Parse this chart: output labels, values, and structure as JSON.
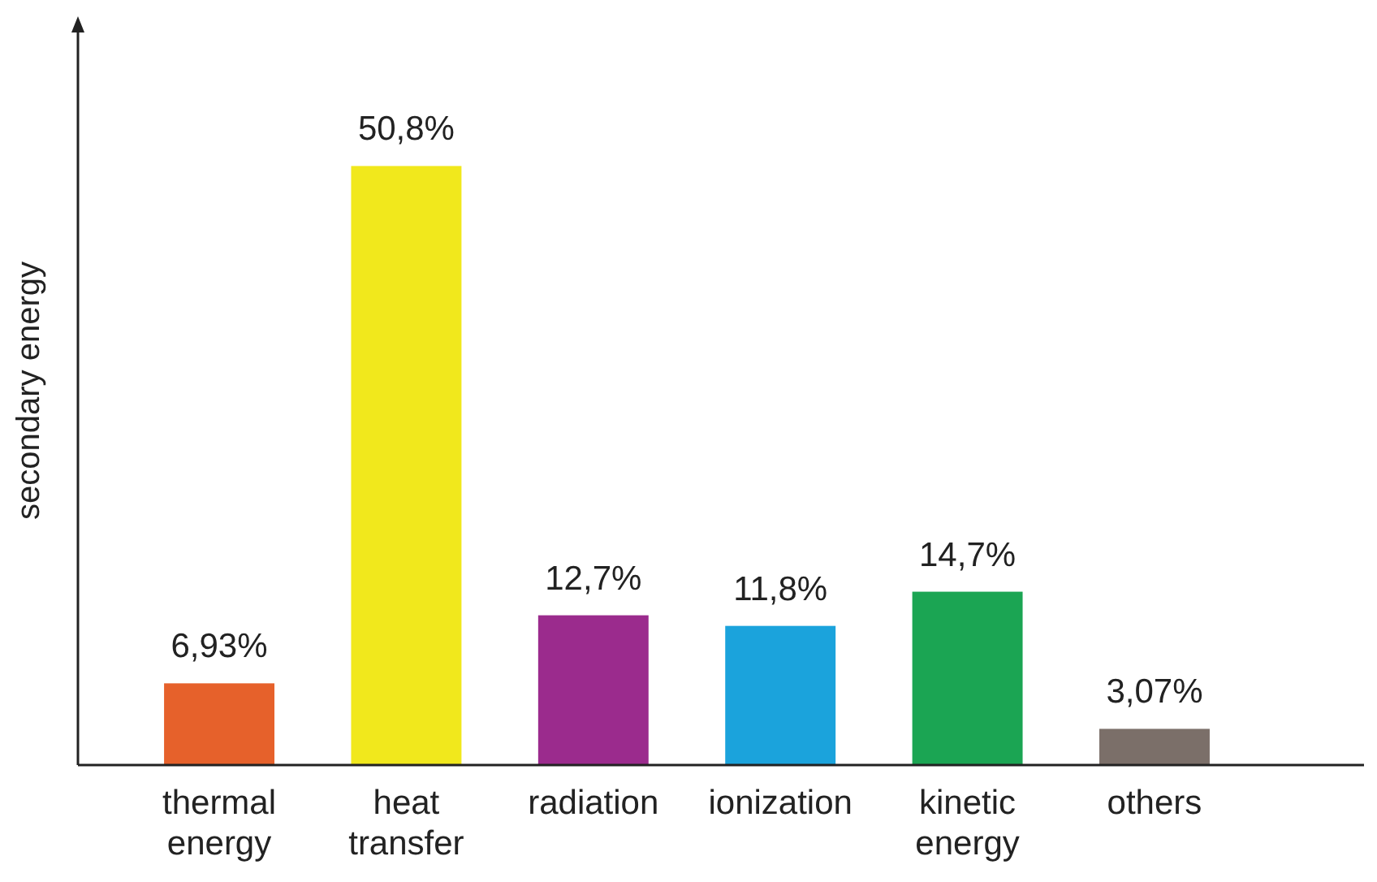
{
  "chart_data": {
    "type": "bar",
    "ylabel": "secondary energy",
    "categories": [
      "thermal energy",
      "heat transfer",
      "radiation",
      "ionization",
      "kinetic energy",
      "others"
    ],
    "values": [
      6.93,
      50.8,
      12.7,
      11.8,
      14.7,
      3.07
    ],
    "value_labels": [
      "6,93%",
      "50,8%",
      "12,7%",
      "11,8%",
      "14,7%",
      "3,07%"
    ],
    "colors": [
      "#e6612b",
      "#f1e81c",
      "#9b2b8d",
      "#1ba3dc",
      "#1ba553",
      "#7b6f69"
    ]
  }
}
